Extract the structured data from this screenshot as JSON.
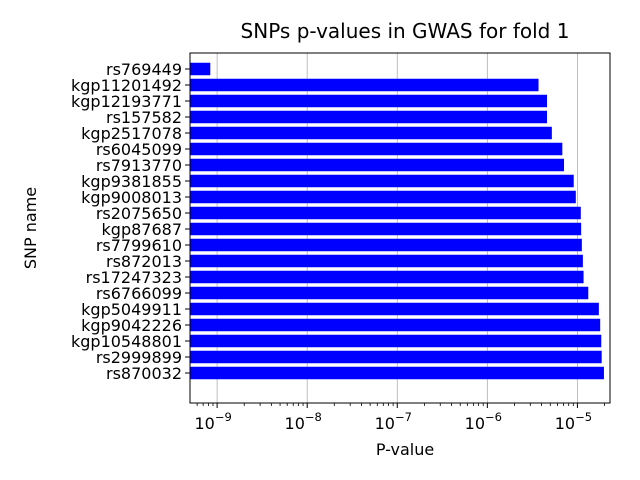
{
  "chart_data": {
    "type": "bar",
    "orientation": "horizontal",
    "title": "SNPs p-values in GWAS for fold 1",
    "xlabel": "P-value",
    "ylabel": "SNP name",
    "xscale": "log",
    "xlim": [
      5e-10,
      2.3e-05
    ],
    "grid": "x-major",
    "bar_color": "#0000ff",
    "x_ticks": [
      {
        "base": "10",
        "exp": "−9",
        "value": 1e-09
      },
      {
        "base": "10",
        "exp": "−8",
        "value": 1e-08
      },
      {
        "base": "10",
        "exp": "−7",
        "value": 1e-07
      },
      {
        "base": "10",
        "exp": "−6",
        "value": 1e-06
      },
      {
        "base": "10",
        "exp": "−5",
        "value": 1e-05
      }
    ],
    "categories": [
      "rs769449",
      "kgp11201492",
      "kgp12193771",
      "rs157582",
      "kgp2517078",
      "rs6045099",
      "rs7913770",
      "kgp9381855",
      "kgp9008013",
      "rs2075650",
      "kgp87687",
      "rs7799610",
      "rs872013",
      "rs17247323",
      "rs6766099",
      "kgp5049911",
      "kgp9042226",
      "kgp10548801",
      "rs2999899",
      "rs870032"
    ],
    "values": [
      8.4e-10,
      3.7e-06,
      4.6e-06,
      4.6e-06,
      5.2e-06,
      6.8e-06,
      7.1e-06,
      9.1e-06,
      9.6e-06,
      1.09e-05,
      1.1e-05,
      1.12e-05,
      1.15e-05,
      1.17e-05,
      1.32e-05,
      1.73e-05,
      1.79e-05,
      1.84e-05,
      1.86e-05,
      1.97e-05
    ]
  }
}
